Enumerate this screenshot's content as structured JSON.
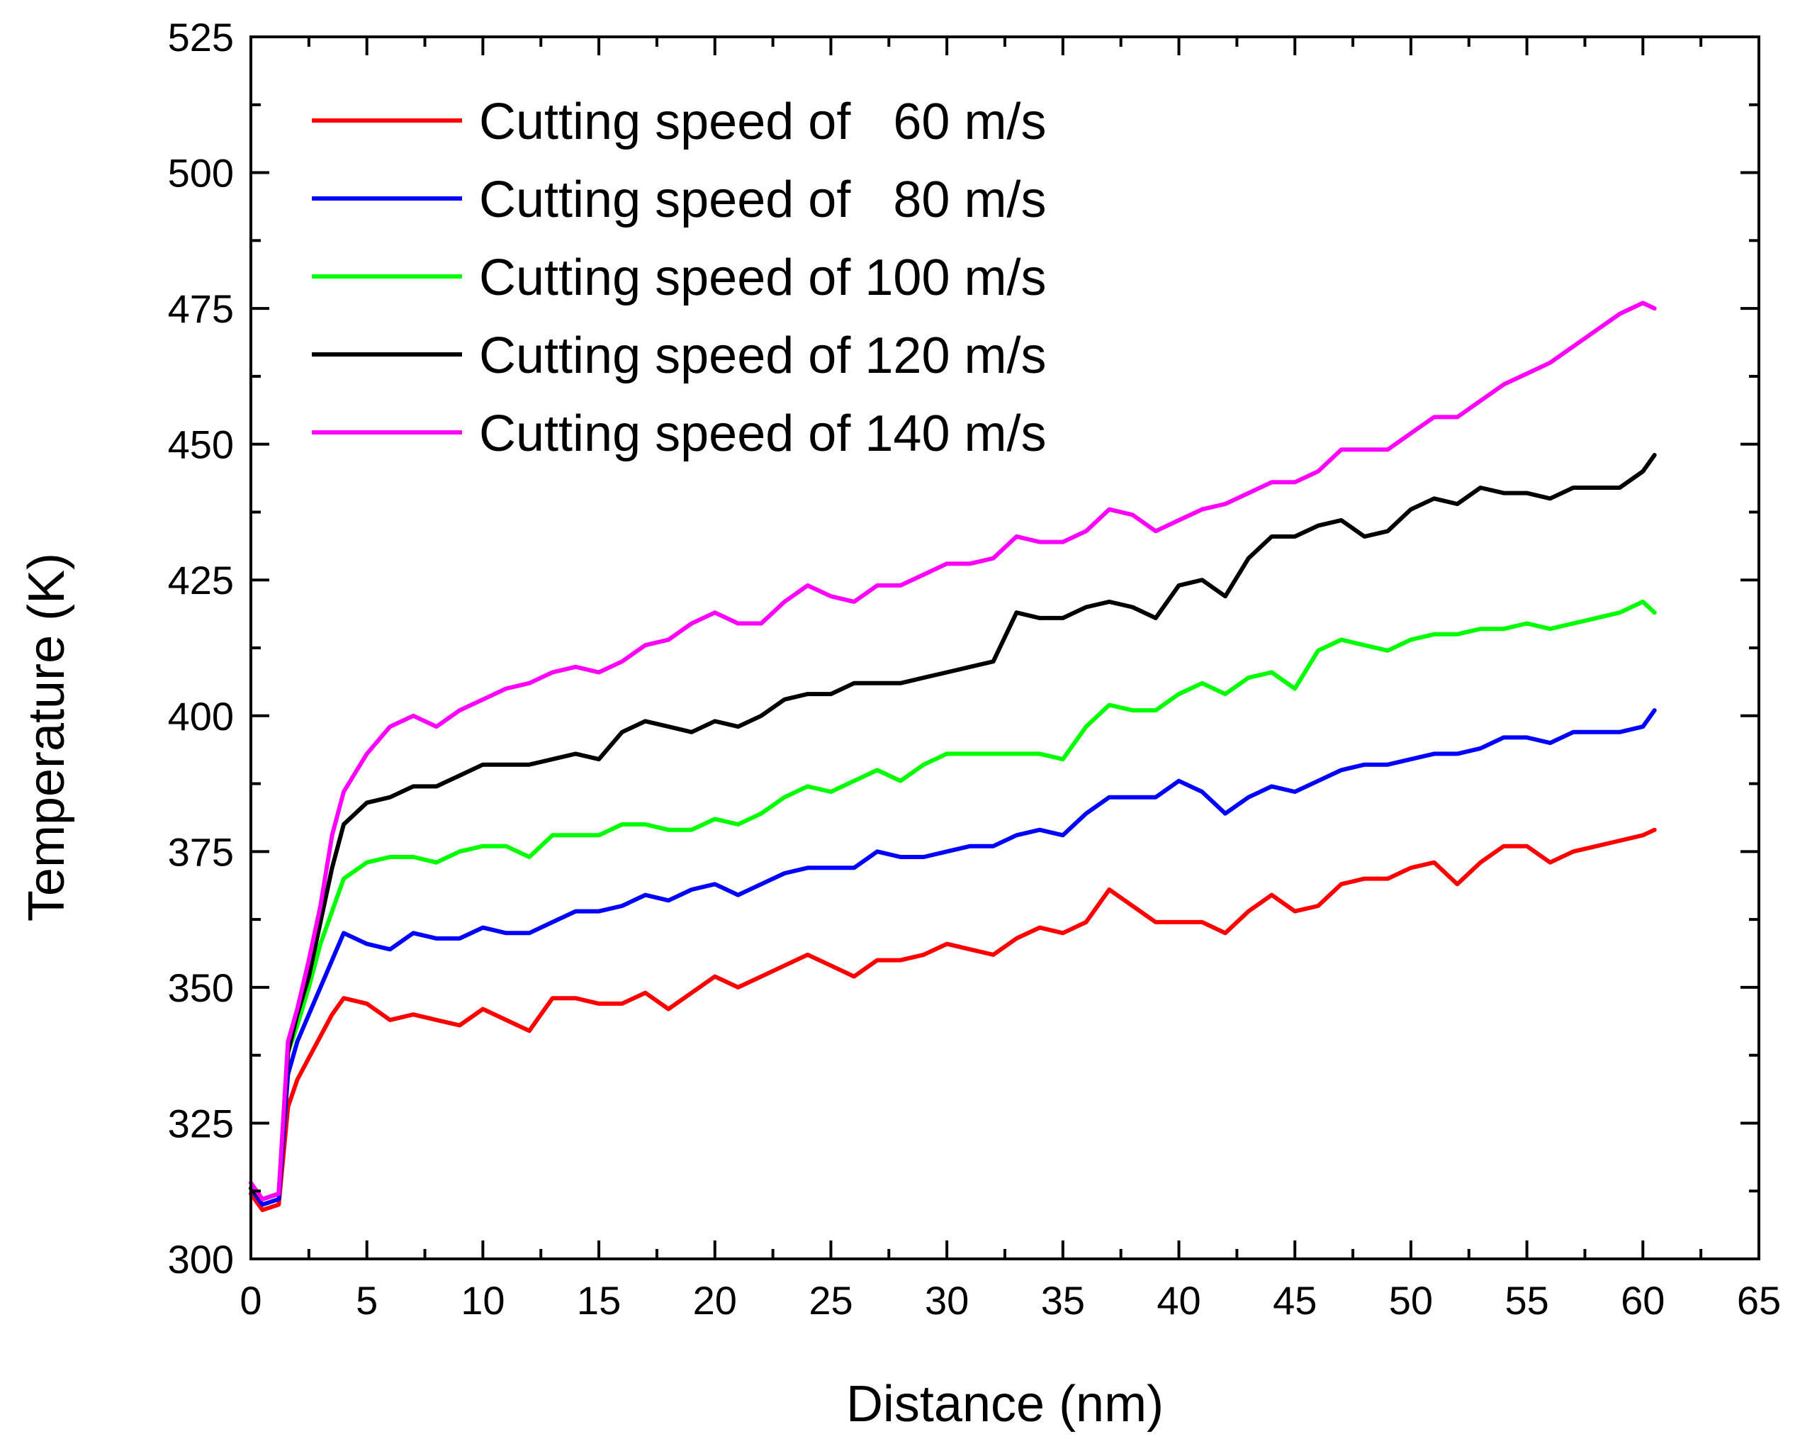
{
  "chart_data": {
    "type": "line",
    "title": "",
    "xlabel": "Distance (nm)",
    "ylabel": "Temperature (K)",
    "xlim": [
      0,
      65
    ],
    "ylim": [
      300,
      525
    ],
    "xticks": [
      0,
      5,
      10,
      15,
      20,
      25,
      30,
      35,
      40,
      45,
      50,
      55,
      60,
      65
    ],
    "yticks": [
      300,
      325,
      350,
      375,
      400,
      425,
      450,
      475,
      500,
      525
    ],
    "grid": false,
    "legend_position": "top-left",
    "series": [
      {
        "name": "Cutting speed of   60 m/s",
        "color": "#ff0000",
        "x": [
          0,
          0.5,
          1.2,
          1.6,
          2,
          2.5,
          3,
          3.5,
          4,
          5,
          6,
          7,
          8,
          9,
          10,
          11,
          12,
          13,
          14,
          15,
          16,
          17,
          18,
          19,
          20,
          21,
          22,
          23,
          24,
          25,
          26,
          27,
          28,
          29,
          30,
          31,
          32,
          33,
          34,
          35,
          36,
          37,
          38,
          39,
          40,
          41,
          42,
          43,
          44,
          45,
          46,
          47,
          48,
          49,
          50,
          51,
          52,
          53,
          54,
          55,
          56,
          57,
          58,
          59,
          60,
          60.5
        ],
        "y": [
          312,
          309,
          310,
          328,
          333,
          337,
          341,
          345,
          348,
          347,
          344,
          345,
          344,
          343,
          346,
          344,
          342,
          348,
          348,
          347,
          347,
          349,
          346,
          349,
          352,
          350,
          352,
          354,
          356,
          354,
          352,
          355,
          355,
          356,
          358,
          357,
          356,
          359,
          361,
          360,
          362,
          368,
          365,
          362,
          362,
          362,
          360,
          364,
          367,
          364,
          365,
          369,
          370,
          370,
          372,
          373,
          369,
          373,
          376,
          376,
          373,
          375,
          376,
          377,
          378,
          379
        ]
      },
      {
        "name": "Cutting speed of   80 m/s",
        "color": "#0000ff",
        "x": [
          0,
          0.5,
          1.2,
          1.6,
          2,
          2.5,
          3,
          3.5,
          4,
          5,
          6,
          7,
          8,
          9,
          10,
          11,
          12,
          13,
          14,
          15,
          16,
          17,
          18,
          19,
          20,
          21,
          22,
          23,
          24,
          25,
          26,
          27,
          28,
          29,
          30,
          31,
          32,
          33,
          34,
          35,
          36,
          37,
          38,
          39,
          40,
          41,
          42,
          43,
          44,
          45,
          46,
          47,
          48,
          49,
          50,
          51,
          52,
          53,
          54,
          55,
          56,
          57,
          58,
          59,
          60,
          60.5
        ],
        "y": [
          313,
          310,
          311,
          334,
          340,
          345,
          350,
          355,
          360,
          358,
          357,
          360,
          359,
          359,
          361,
          360,
          360,
          362,
          364,
          364,
          365,
          367,
          366,
          368,
          369,
          367,
          369,
          371,
          372,
          372,
          372,
          375,
          374,
          374,
          375,
          376,
          376,
          378,
          379,
          378,
          382,
          385,
          385,
          385,
          388,
          386,
          382,
          385,
          387,
          386,
          388,
          390,
          391,
          391,
          392,
          393,
          393,
          394,
          396,
          396,
          395,
          397,
          397,
          397,
          398,
          401
        ]
      },
      {
        "name": "Cutting speed of 100 m/s",
        "color": "#00ff00",
        "x": [
          0,
          0.5,
          1.2,
          1.6,
          2,
          2.5,
          3,
          3.5,
          4,
          5,
          6,
          7,
          8,
          9,
          10,
          11,
          12,
          13,
          14,
          15,
          16,
          17,
          18,
          19,
          20,
          21,
          22,
          23,
          24,
          25,
          26,
          27,
          28,
          29,
          30,
          31,
          32,
          33,
          34,
          35,
          36,
          37,
          38,
          39,
          40,
          41,
          42,
          43,
          44,
          45,
          46,
          47,
          48,
          49,
          50,
          51,
          52,
          53,
          54,
          55,
          56,
          57,
          58,
          59,
          60,
          60.5
        ],
        "y": [
          313,
          311,
          312,
          338,
          343,
          350,
          358,
          364,
          370,
          373,
          374,
          374,
          373,
          375,
          376,
          376,
          374,
          378,
          378,
          378,
          380,
          380,
          379,
          379,
          381,
          380,
          382,
          385,
          387,
          386,
          388,
          390,
          388,
          391,
          393,
          393,
          393,
          393,
          393,
          392,
          398,
          402,
          401,
          401,
          404,
          406,
          404,
          407,
          408,
          405,
          412,
          414,
          413,
          412,
          414,
          415,
          415,
          416,
          416,
          417,
          416,
          417,
          418,
          419,
          421,
          419
        ]
      },
      {
        "name": "Cutting speed of 120 m/s",
        "color": "#000000",
        "x": [
          0,
          0.5,
          1.2,
          1.6,
          2,
          2.5,
          3,
          3.5,
          4,
          5,
          6,
          7,
          8,
          9,
          10,
          11,
          12,
          13,
          14,
          15,
          16,
          17,
          18,
          19,
          20,
          21,
          22,
          23,
          24,
          25,
          26,
          27,
          28,
          29,
          30,
          31,
          32,
          33,
          34,
          35,
          36,
          37,
          38,
          39,
          40,
          41,
          42,
          43,
          44,
          45,
          46,
          47,
          48,
          49,
          50,
          51,
          52,
          53,
          54,
          55,
          56,
          57,
          58,
          59,
          60,
          60.5
        ],
        "y": [
          313,
          311,
          312,
          338,
          345,
          352,
          362,
          372,
          380,
          384,
          385,
          387,
          387,
          389,
          391,
          391,
          391,
          392,
          393,
          392,
          397,
          399,
          398,
          397,
          399,
          398,
          400,
          403,
          404,
          404,
          406,
          406,
          406,
          407,
          408,
          409,
          410,
          419,
          418,
          418,
          420,
          421,
          420,
          418,
          424,
          425,
          422,
          429,
          433,
          433,
          435,
          436,
          433,
          434,
          438,
          440,
          439,
          442,
          441,
          441,
          440,
          442,
          442,
          442,
          445,
          448
        ]
      },
      {
        "name": "Cutting speed of 140 m/s",
        "color": "#ff00ff",
        "x": [
          0,
          0.5,
          1.2,
          1.6,
          2,
          2.5,
          3,
          3.5,
          4,
          5,
          6,
          7,
          8,
          9,
          10,
          11,
          12,
          13,
          14,
          15,
          16,
          17,
          18,
          19,
          20,
          21,
          22,
          23,
          24,
          25,
          26,
          27,
          28,
          29,
          30,
          31,
          32,
          33,
          34,
          35,
          36,
          37,
          38,
          39,
          40,
          41,
          42,
          43,
          44,
          45,
          46,
          47,
          48,
          49,
          50,
          51,
          52,
          53,
          54,
          55,
          56,
          57,
          58,
          59,
          60,
          60.5
        ],
        "y": [
          314,
          311,
          312,
          340,
          346,
          355,
          365,
          378,
          386,
          393,
          398,
          400,
          398,
          401,
          403,
          405,
          406,
          408,
          409,
          408,
          410,
          413,
          414,
          417,
          419,
          417,
          417,
          421,
          424,
          422,
          421,
          424,
          424,
          426,
          428,
          428,
          429,
          433,
          432,
          432,
          434,
          438,
          437,
          434,
          436,
          438,
          439,
          441,
          443,
          443,
          445,
          449,
          449,
          449,
          452,
          455,
          455,
          458,
          461,
          463,
          465,
          468,
          471,
          474,
          476,
          475
        ]
      }
    ]
  }
}
